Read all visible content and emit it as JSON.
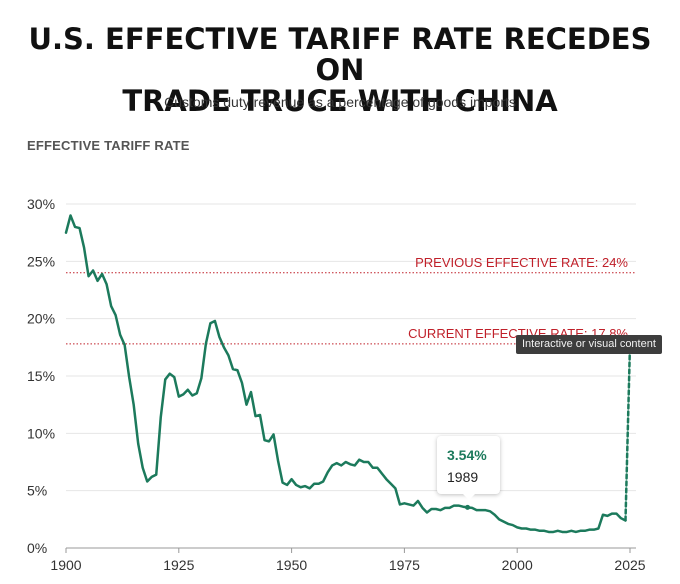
{
  "header": {
    "title_line1": "U.S. EFFECTIVE TARIFF RATE RECEDES ON",
    "title_line2": "TRADE TRUCE WITH CHINA",
    "subtitle": "Customs duty revenue as a percentage of goods imports"
  },
  "tooltip": {
    "value": "3.54%",
    "year": "1989"
  },
  "overlay": {
    "badge_text": "Interactive or visual content"
  },
  "colors": {
    "line": "#1c7a5c",
    "reference": "#c0202a",
    "grid": "#e6e6e6"
  },
  "chart_data": {
    "type": "line",
    "ylabel": "EFFECTIVE TARIFF RATE",
    "xlim": [
      1900,
      2025
    ],
    "ylim": [
      0,
      30
    ],
    "x_ticks": [
      1900,
      1925,
      1950,
      1975,
      2000,
      2025
    ],
    "y_ticks": [
      0,
      5,
      10,
      15,
      20,
      25,
      30
    ],
    "y_tick_labels": [
      "0%",
      "5%",
      "10%",
      "15%",
      "20%",
      "25%",
      "30%"
    ],
    "grid": "horizontal",
    "reference_lines": [
      {
        "label": "PREVIOUS EFFECTIVE RATE: 24%",
        "value": 24
      },
      {
        "label": "CURRENT EFFECTIVE RATE: 17.8%",
        "value": 17.8
      }
    ],
    "series": [
      {
        "values": [
          [
            1900,
            27.5
          ],
          [
            1901,
            29.0
          ],
          [
            1902,
            28.0
          ],
          [
            1903,
            27.9
          ],
          [
            1904,
            26.2
          ],
          [
            1905,
            23.7
          ],
          [
            1906,
            24.2
          ],
          [
            1907,
            23.3
          ],
          [
            1908,
            23.9
          ],
          [
            1909,
            23.0
          ],
          [
            1910,
            21.1
          ],
          [
            1911,
            20.3
          ],
          [
            1912,
            18.6
          ],
          [
            1913,
            17.7
          ],
          [
            1914,
            14.9
          ],
          [
            1915,
            12.5
          ],
          [
            1916,
            9.1
          ],
          [
            1917,
            7.0
          ],
          [
            1918,
            5.8
          ],
          [
            1919,
            6.2
          ],
          [
            1920,
            6.4
          ],
          [
            1921,
            11.4
          ],
          [
            1922,
            14.7
          ],
          [
            1923,
            15.2
          ],
          [
            1924,
            14.9
          ],
          [
            1925,
            13.2
          ],
          [
            1926,
            13.4
          ],
          [
            1927,
            13.8
          ],
          [
            1928,
            13.3
          ],
          [
            1929,
            13.5
          ],
          [
            1930,
            14.8
          ],
          [
            1931,
            17.8
          ],
          [
            1932,
            19.6
          ],
          [
            1933,
            19.8
          ],
          [
            1934,
            18.4
          ],
          [
            1935,
            17.5
          ],
          [
            1936,
            16.8
          ],
          [
            1937,
            15.6
          ],
          [
            1938,
            15.5
          ],
          [
            1939,
            14.4
          ],
          [
            1940,
            12.5
          ],
          [
            1941,
            13.6
          ],
          [
            1942,
            11.5
          ],
          [
            1943,
            11.6
          ],
          [
            1944,
            9.4
          ],
          [
            1945,
            9.3
          ],
          [
            1946,
            9.9
          ],
          [
            1947,
            7.6
          ],
          [
            1948,
            5.7
          ],
          [
            1949,
            5.5
          ],
          [
            1950,
            6.0
          ],
          [
            1951,
            5.5
          ],
          [
            1952,
            5.3
          ],
          [
            1953,
            5.4
          ],
          [
            1954,
            5.2
          ],
          [
            1955,
            5.6
          ],
          [
            1956,
            5.6
          ],
          [
            1957,
            5.8
          ],
          [
            1958,
            6.6
          ],
          [
            1959,
            7.2
          ],
          [
            1960,
            7.4
          ],
          [
            1961,
            7.2
          ],
          [
            1962,
            7.5
          ],
          [
            1963,
            7.3
          ],
          [
            1964,
            7.2
          ],
          [
            1965,
            7.7
          ],
          [
            1966,
            7.5
          ],
          [
            1967,
            7.5
          ],
          [
            1968,
            7.0
          ],
          [
            1969,
            7.0
          ],
          [
            1970,
            6.5
          ],
          [
            1971,
            6.0
          ],
          [
            1972,
            5.6
          ],
          [
            1973,
            5.2
          ],
          [
            1974,
            3.8
          ],
          [
            1975,
            3.9
          ],
          [
            1976,
            3.8
          ],
          [
            1977,
            3.7
          ],
          [
            1978,
            4.1
          ],
          [
            1979,
            3.5
          ],
          [
            1980,
            3.1
          ],
          [
            1981,
            3.4
          ],
          [
            1982,
            3.4
          ],
          [
            1983,
            3.3
          ],
          [
            1984,
            3.5
          ],
          [
            1985,
            3.5
          ],
          [
            1986,
            3.7
          ],
          [
            1987,
            3.7
          ],
          [
            1988,
            3.6
          ],
          [
            1989,
            3.54
          ],
          [
            1990,
            3.5
          ],
          [
            1991,
            3.3
          ],
          [
            1992,
            3.3
          ],
          [
            1993,
            3.3
          ],
          [
            1994,
            3.2
          ],
          [
            1995,
            2.9
          ],
          [
            1996,
            2.5
          ],
          [
            1997,
            2.3
          ],
          [
            1998,
            2.1
          ],
          [
            1999,
            2.0
          ],
          [
            2000,
            1.8
          ],
          [
            2001,
            1.7
          ],
          [
            2002,
            1.7
          ],
          [
            2003,
            1.6
          ],
          [
            2004,
            1.6
          ],
          [
            2005,
            1.5
          ],
          [
            2006,
            1.5
          ],
          [
            2007,
            1.4
          ],
          [
            2008,
            1.4
          ],
          [
            2009,
            1.5
          ],
          [
            2010,
            1.4
          ],
          [
            2011,
            1.4
          ],
          [
            2012,
            1.5
          ],
          [
            2013,
            1.4
          ],
          [
            2014,
            1.5
          ],
          [
            2015,
            1.5
          ],
          [
            2016,
            1.6
          ],
          [
            2017,
            1.6
          ],
          [
            2018,
            1.7
          ],
          [
            2019,
            2.9
          ],
          [
            2020,
            2.8
          ],
          [
            2021,
            3.0
          ],
          [
            2022,
            3.0
          ],
          [
            2023,
            2.6
          ],
          [
            2024,
            2.4
          ]
        ]
      },
      {
        "style": "dashed",
        "values": [
          [
            2024,
            2.4
          ],
          [
            2025,
            17.8
          ]
        ]
      }
    ]
  }
}
